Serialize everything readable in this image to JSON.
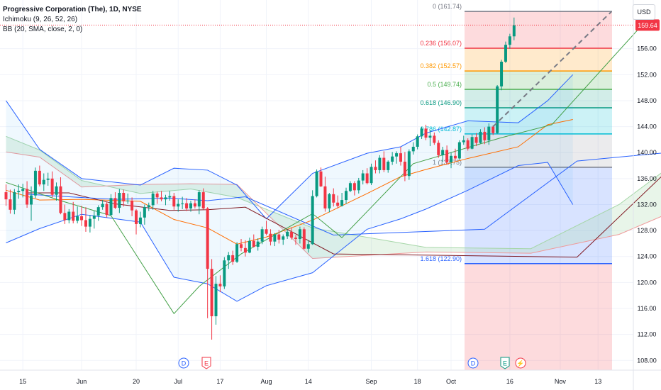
{
  "legend": {
    "title": "Progressive Corporation (The), 1D, NYSE",
    "ichimoku": "Ichimoku (9, 26, 52, 26)",
    "bb": "BB (20, SMA, close, 2, 0)"
  },
  "currency": "USD",
  "last_price": "159.64",
  "colors": {
    "up": "#089981",
    "down": "#f23645",
    "ichi_green": "#43a047",
    "ichi_red": "#801922",
    "ichi_orange": "#ff6d00",
    "bb_line": "#2962ff",
    "cloud_green": "#a5d6a7",
    "cloud_red": "#ef9a9a"
  },
  "chart_data": {
    "type": "candlestick",
    "y_axis": {
      "ylim": [
        106.5,
        163.5
      ],
      "ticks": [
        "108.00",
        "112.00",
        "116.00",
        "120.00",
        "124.00",
        "128.00",
        "132.00",
        "136.00",
        "140.00",
        "144.00",
        "148.00",
        "152.00",
        "156.00"
      ]
    },
    "x_axis": {
      "ticks": [
        "15",
        "Jun",
        "20",
        "Jul",
        "17",
        "Aug",
        "14",
        "Sep",
        "18",
        "Oct",
        "16",
        "Nov",
        "13"
      ]
    },
    "candles": [
      [
        133.9,
        135.1,
        131.8,
        132.8
      ],
      [
        132.8,
        134.3,
        130.6,
        131.2
      ],
      [
        131.2,
        134.4,
        130.5,
        133.9
      ],
      [
        133.9,
        135.1,
        132.9,
        134.1
      ],
      [
        134.1,
        135.2,
        133.1,
        134.4
      ],
      [
        134.4,
        135.6,
        131.5,
        132.0
      ],
      [
        132.0,
        134.8,
        129.5,
        133.4
      ],
      [
        133.4,
        137.7,
        133.0,
        137.2
      ],
      [
        137.2,
        138.0,
        134.8,
        135.1
      ],
      [
        135.1,
        136.8,
        134.1,
        135.8
      ],
      [
        135.8,
        136.9,
        134.9,
        136.0
      ],
      [
        136.0,
        137.1,
        133.1,
        133.5
      ],
      [
        133.5,
        135.4,
        132.6,
        134.8
      ],
      [
        134.8,
        136.2,
        130.5,
        130.7
      ],
      [
        130.7,
        132.0,
        129.0,
        129.6
      ],
      [
        129.6,
        131.3,
        129.1,
        130.9
      ],
      [
        130.9,
        132.4,
        129.1,
        129.5
      ],
      [
        129.5,
        131.7,
        129.1,
        130.2
      ],
      [
        130.2,
        131.8,
        128.7,
        129.6
      ],
      [
        129.6,
        131.6,
        127.8,
        128.6
      ],
      [
        128.6,
        130.4,
        127.7,
        129.8
      ],
      [
        129.8,
        131.0,
        128.3,
        130.3
      ],
      [
        130.3,
        131.9,
        129.5,
        131.6
      ],
      [
        131.6,
        132.7,
        131.2,
        132.1
      ],
      [
        132.1,
        132.5,
        130.0,
        130.4
      ],
      [
        130.4,
        133.6,
        130.2,
        133.0
      ],
      [
        133.0,
        133.9,
        131.3,
        131.5
      ],
      [
        131.5,
        134.4,
        130.7,
        133.8
      ],
      [
        133.8,
        134.3,
        131.7,
        132.5
      ],
      [
        132.5,
        133.7,
        132.1,
        132.6
      ],
      [
        132.6,
        133.1,
        130.2,
        131.1
      ],
      [
        131.1,
        131.3,
        127.4,
        129.0
      ],
      [
        129.0,
        130.9,
        128.5,
        130.0
      ],
      [
        130.0,
        132.0,
        128.9,
        131.6
      ],
      [
        131.6,
        132.3,
        131.0,
        131.9
      ],
      [
        131.9,
        134.1,
        131.2,
        133.7
      ],
      [
        133.7,
        134.0,
        132.1,
        133.1
      ],
      [
        133.1,
        134.1,
        132.5,
        132.8
      ],
      [
        132.8,
        133.5,
        131.9,
        133.1
      ],
      [
        133.1,
        134.1,
        132.6,
        133.3
      ],
      [
        133.3,
        133.8,
        131.2,
        131.7
      ],
      [
        131.7,
        132.8,
        130.9,
        132.1
      ],
      [
        132.1,
        133.2,
        131.3,
        132.2
      ],
      [
        132.2,
        133.0,
        131.0,
        131.4
      ],
      [
        131.4,
        132.6,
        130.9,
        132.2
      ],
      [
        132.2,
        132.8,
        131.4,
        131.7
      ],
      [
        131.7,
        134.2,
        130.5,
        133.9
      ],
      [
        133.9,
        134.5,
        131.2,
        131.4
      ],
      [
        131.4,
        131.6,
        114.5,
        122.1
      ],
      [
        122.1,
        123.6,
        111.2,
        114.8
      ],
      [
        114.8,
        121.0,
        113.5,
        119.8
      ],
      [
        119.8,
        121.1,
        118.5,
        119.4
      ],
      [
        119.4,
        123.9,
        119.0,
        123.4
      ],
      [
        123.4,
        124.7,
        122.1,
        124.2
      ],
      [
        124.2,
        124.9,
        122.7,
        123.2
      ],
      [
        123.2,
        126.2,
        123.0,
        125.9
      ],
      [
        125.9,
        126.7,
        124.8,
        125.3
      ],
      [
        125.3,
        126.5,
        124.0,
        124.6
      ],
      [
        124.6,
        126.9,
        124.5,
        126.4
      ],
      [
        126.4,
        127.4,
        125.4,
        125.5
      ],
      [
        125.5,
        126.8,
        124.9,
        126.3
      ],
      [
        126.3,
        128.6,
        125.9,
        128.2
      ],
      [
        128.2,
        129.5,
        127.3,
        127.5
      ],
      [
        127.5,
        128.2,
        125.7,
        126.3
      ],
      [
        126.3,
        127.6,
        125.6,
        127.4
      ],
      [
        127.4,
        128.1,
        126.0,
        126.6
      ],
      [
        126.6,
        127.4,
        125.8,
        127.1
      ],
      [
        127.1,
        128.2,
        126.7,
        127.8
      ],
      [
        127.8,
        128.5,
        126.6,
        126.9
      ],
      [
        126.9,
        127.3,
        125.8,
        126.7
      ],
      [
        126.7,
        128.6,
        126.0,
        128.2
      ],
      [
        128.2,
        128.5,
        125.1,
        125.2
      ],
      [
        125.2,
        126.5,
        124.6,
        125.9
      ],
      [
        125.9,
        134.2,
        125.8,
        133.3
      ],
      [
        133.3,
        137.4,
        133.1,
        137.1
      ],
      [
        137.1,
        137.7,
        134.7,
        134.8
      ],
      [
        134.8,
        136.3,
        130.9,
        131.4
      ],
      [
        131.4,
        133.8,
        130.8,
        133.6
      ],
      [
        133.6,
        134.5,
        131.7,
        132.3
      ],
      [
        132.3,
        133.4,
        131.4,
        131.8
      ],
      [
        131.8,
        133.8,
        131.7,
        132.7
      ],
      [
        132.7,
        134.6,
        132.1,
        134.1
      ],
      [
        134.1,
        135.6,
        133.9,
        135.3
      ],
      [
        135.3,
        135.6,
        133.4,
        134.2
      ],
      [
        134.2,
        136.1,
        133.7,
        135.7
      ],
      [
        135.7,
        137.3,
        135.1,
        136.8
      ],
      [
        136.8,
        137.6,
        135.1,
        135.3
      ],
      [
        135.3,
        138.3,
        135.0,
        137.8
      ],
      [
        137.8,
        138.8,
        136.8,
        137.3
      ],
      [
        137.3,
        139.6,
        136.8,
        139.2
      ],
      [
        139.2,
        140.2,
        137.0,
        137.3
      ],
      [
        137.3,
        138.8,
        136.9,
        138.6
      ],
      [
        138.6,
        140.1,
        138.1,
        139.4
      ],
      [
        139.4,
        140.2,
        138.3,
        139.9
      ],
      [
        139.9,
        140.9,
        138.0,
        138.6
      ],
      [
        138.6,
        140.1,
        135.6,
        136.4
      ],
      [
        136.4,
        140.5,
        135.8,
        140.2
      ],
      [
        140.2,
        141.6,
        139.7,
        140.9
      ],
      [
        140.9,
        142.8,
        140.5,
        142.5
      ],
      [
        142.5,
        144.0,
        142.1,
        143.7
      ],
      [
        143.7,
        144.3,
        141.9,
        142.3
      ],
      [
        142.3,
        143.5,
        141.0,
        142.6
      ],
      [
        142.6,
        143.1,
        141.2,
        141.5
      ],
      [
        141.5,
        141.9,
        139.2,
        139.6
      ],
      [
        139.6,
        140.9,
        138.6,
        140.4
      ],
      [
        140.4,
        141.1,
        138.1,
        138.5
      ],
      [
        138.5,
        140.0,
        137.6,
        139.5
      ],
      [
        139.5,
        140.6,
        138.7,
        139.1
      ],
      [
        139.1,
        141.9,
        138.9,
        141.6
      ],
      [
        141.6,
        142.6,
        141.2,
        141.9
      ],
      [
        141.9,
        142.2,
        140.3,
        140.6
      ],
      [
        140.6,
        142.8,
        140.5,
        142.4
      ],
      [
        142.4,
        143.0,
        141.0,
        141.5
      ],
      [
        141.5,
        143.6,
        141.4,
        143.2
      ],
      [
        143.2,
        143.9,
        141.3,
        141.9
      ],
      [
        141.9,
        144.5,
        141.2,
        144.0
      ],
      [
        144.0,
        144.2,
        142.7,
        143.0
      ],
      [
        143.0,
        150.4,
        142.9,
        150.2
      ],
      [
        150.2,
        154.3,
        149.6,
        154.0
      ],
      [
        154.0,
        157.1,
        153.8,
        156.6
      ],
      [
        156.6,
        158.3,
        156.0,
        157.9
      ],
      [
        157.9,
        160.8,
        157.3,
        159.6
      ]
    ],
    "ichimoku": {
      "conversion_line": [
        [
          130.5,
          133.6
        ],
        [
          131.5,
          133.2
        ],
        [
          132.6,
          132.8
        ],
        [
          133.9,
          133.0
        ],
        [
          134.8,
          132.6
        ],
        [
          135.7,
          133.2
        ],
        [
          137.8,
          127.3
        ],
        [
          141.4,
          128.2
        ],
        [
          143.6,
          138.7
        ],
        [
          145.9,
          140.1
        ],
        [
          146.9,
          143.3
        ],
        [
          148.0,
          144.8
        ]
      ],
      "base_line": [
        [
          130.5,
          133.8
        ],
        [
          131.5,
          133.8
        ],
        [
          132.6,
          132.1
        ],
        [
          133.9,
          131.1
        ],
        [
          134.8,
          131.2
        ],
        [
          135.7,
          131.6
        ],
        [
          137.8,
          124.4
        ],
        [
          143.6,
          123.9
        ],
        [
          145.9,
          138.1
        ],
        [
          148.0,
          141.5
        ]
      ],
      "lagging_span": [
        [
          130.0,
          135.4
        ],
        [
          131.3,
          132.6
        ],
        [
          132.5,
          130.3
        ],
        [
          134.0,
          115.2
        ],
        [
          134.6,
          119.4
        ],
        [
          135.6,
          124.4
        ],
        [
          137.3,
          130.6
        ],
        [
          138.0,
          126.9
        ],
        [
          139.7,
          138.3
        ],
        [
          141.8,
          142.3
        ],
        [
          143.0,
          144.3
        ],
        [
          145.2,
          160.0
        ]
      ],
      "leading_span_a": [
        [
          130.0,
          142.5
        ],
        [
          130.8,
          140.4
        ],
        [
          131.8,
          135.7
        ],
        [
          133.2,
          133.7
        ],
        [
          134.4,
          134.4
        ],
        [
          135.5,
          133.1
        ],
        [
          137.3,
          128.4
        ],
        [
          140.0,
          125.4
        ],
        [
          142.5,
          125.2
        ],
        [
          144.6,
          132.0
        ],
        [
          145.8,
          137.8
        ],
        [
          147.5,
          139.8
        ],
        [
          149.3,
          141.3
        ],
        [
          150.7,
          147.6
        ]
      ],
      "leading_span_b": [
        [
          130.0,
          140.1
        ],
        [
          130.8,
          139.3
        ],
        [
          131.8,
          134.7
        ],
        [
          133.2,
          135.1
        ],
        [
          134.4,
          135.2
        ],
        [
          135.5,
          135.1
        ],
        [
          137.3,
          123.7
        ],
        [
          140.0,
          124.7
        ],
        [
          142.5,
          124.5
        ],
        [
          144.6,
          127.4
        ],
        [
          145.8,
          130.7
        ],
        [
          147.5,
          133.6
        ],
        [
          149.3,
          136.6
        ],
        [
          150.7,
          142.1
        ]
      ]
    },
    "bollinger": {
      "basis": [
        [
          130.0,
          134.2
        ],
        [
          130.8,
          132.7
        ],
        [
          131.8,
          132.8
        ],
        [
          133.2,
          132.5
        ],
        [
          134.0,
          129.7
        ],
        [
          134.8,
          128.4
        ],
        [
          135.5,
          125.9
        ],
        [
          136.2,
          127.0
        ],
        [
          137.3,
          129.6
        ],
        [
          138.6,
          133.7
        ],
        [
          139.4,
          136.3
        ],
        [
          140.0,
          137.4
        ],
        [
          141.0,
          139.1
        ],
        [
          142.2,
          140.9
        ],
        [
          142.9,
          144.3
        ],
        [
          143.5,
          145.1
        ]
      ],
      "upper": [
        [
          130.0,
          148.0
        ],
        [
          130.8,
          140.5
        ],
        [
          131.8,
          136.0
        ],
        [
          133.2,
          135.0
        ],
        [
          134.0,
          137.6
        ],
        [
          134.8,
          137.3
        ],
        [
          135.5,
          135.0
        ],
        [
          136.2,
          129.8
        ],
        [
          137.3,
          136.8
        ],
        [
          138.6,
          139.9
        ],
        [
          139.4,
          140.9
        ],
        [
          140.0,
          143.0
        ],
        [
          141.0,
          144.9
        ],
        [
          142.2,
          144.6
        ],
        [
          142.9,
          148.0
        ],
        [
          143.5,
          152.0
        ]
      ],
      "lower": [
        [
          130.0,
          126.1
        ],
        [
          130.8,
          128.3
        ],
        [
          131.8,
          130.5
        ],
        [
          133.2,
          129.3
        ],
        [
          134.0,
          120.8
        ],
        [
          134.8,
          119.8
        ],
        [
          135.5,
          117.1
        ],
        [
          136.2,
          119.5
        ],
        [
          137.3,
          121.5
        ],
        [
          138.6,
          128.2
        ],
        [
          139.4,
          129.8
        ],
        [
          140.0,
          131.3
        ],
        [
          141.0,
          134.2
        ],
        [
          142.2,
          138.0
        ],
        [
          142.9,
          138.5
        ],
        [
          143.5,
          132.0
        ]
      ]
    },
    "fibonacci": {
      "levels": [
        {
          "ratio": "0",
          "price": 161.74,
          "label": "0 (161.74)",
          "color": "#787b86"
        },
        {
          "ratio": "0.236",
          "price": 156.07,
          "label": "0.236 (156.07)",
          "color": "#f23645"
        },
        {
          "ratio": "0.382",
          "price": 152.57,
          "label": "0.382 (152.57)",
          "color": "#ff9800"
        },
        {
          "ratio": "0.5",
          "price": 149.74,
          "label": "0.5 (149.74)",
          "color": "#4caf50"
        },
        {
          "ratio": "0.618",
          "price": 146.9,
          "label": "0.618 (146.90)",
          "color": "#089981"
        },
        {
          "ratio": "0.786",
          "price": 142.87,
          "label": "0.786 (142.87)",
          "color": "#00bcd4"
        },
        {
          "ratio": "1",
          "price": 137.75,
          "label": "1 (137.75)",
          "color": "#787b86"
        },
        {
          "ratio": "1.618",
          "price": 122.9,
          "label": "1.618 (122.90)",
          "color": "#2962ff"
        }
      ]
    },
    "events": [
      {
        "label": "D",
        "kind": "dividend"
      },
      {
        "label": "E",
        "kind": "earnings"
      },
      {
        "label": "D",
        "kind": "dividend"
      },
      {
        "label": "E",
        "kind": "earnings"
      },
      {
        "label": "⚡",
        "kind": "split-news"
      }
    ]
  }
}
